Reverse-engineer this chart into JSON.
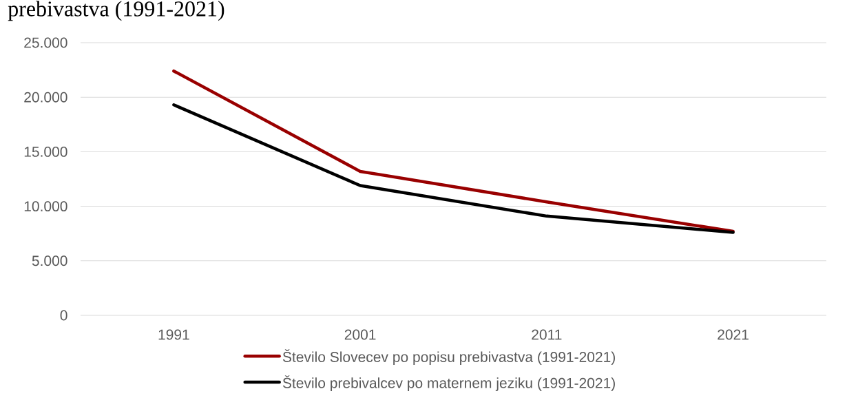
{
  "chart_data": {
    "type": "line",
    "title": "prebivastva (1991-2021)",
    "categories": [
      "1991",
      "2001",
      "2011",
      "2021"
    ],
    "series": [
      {
        "name": "Število Slovecev po popisu prebivastva (1991-2021)",
        "color": "#990000",
        "values": [
          22400,
          13200,
          10400,
          7700
        ]
      },
      {
        "name": "Število prebivalcev po maternem jeziku (1991-2021)",
        "color": "#000000",
        "values": [
          19300,
          11900,
          9100,
          7600
        ]
      }
    ],
    "ylim": [
      0,
      25000
    ],
    "yticks": [
      0,
      {
        "value": 5000,
        "label": "5.000"
      },
      {
        "value": 10000,
        "label": "10.000"
      },
      {
        "value": 15000,
        "label": "15.000"
      },
      {
        "value": 20000,
        "label": "20.000"
      },
      {
        "value": 25000,
        "label": "25.000"
      }
    ],
    "grid": "y",
    "legend": "bottom",
    "marker": "none",
    "line_style": "solid"
  }
}
